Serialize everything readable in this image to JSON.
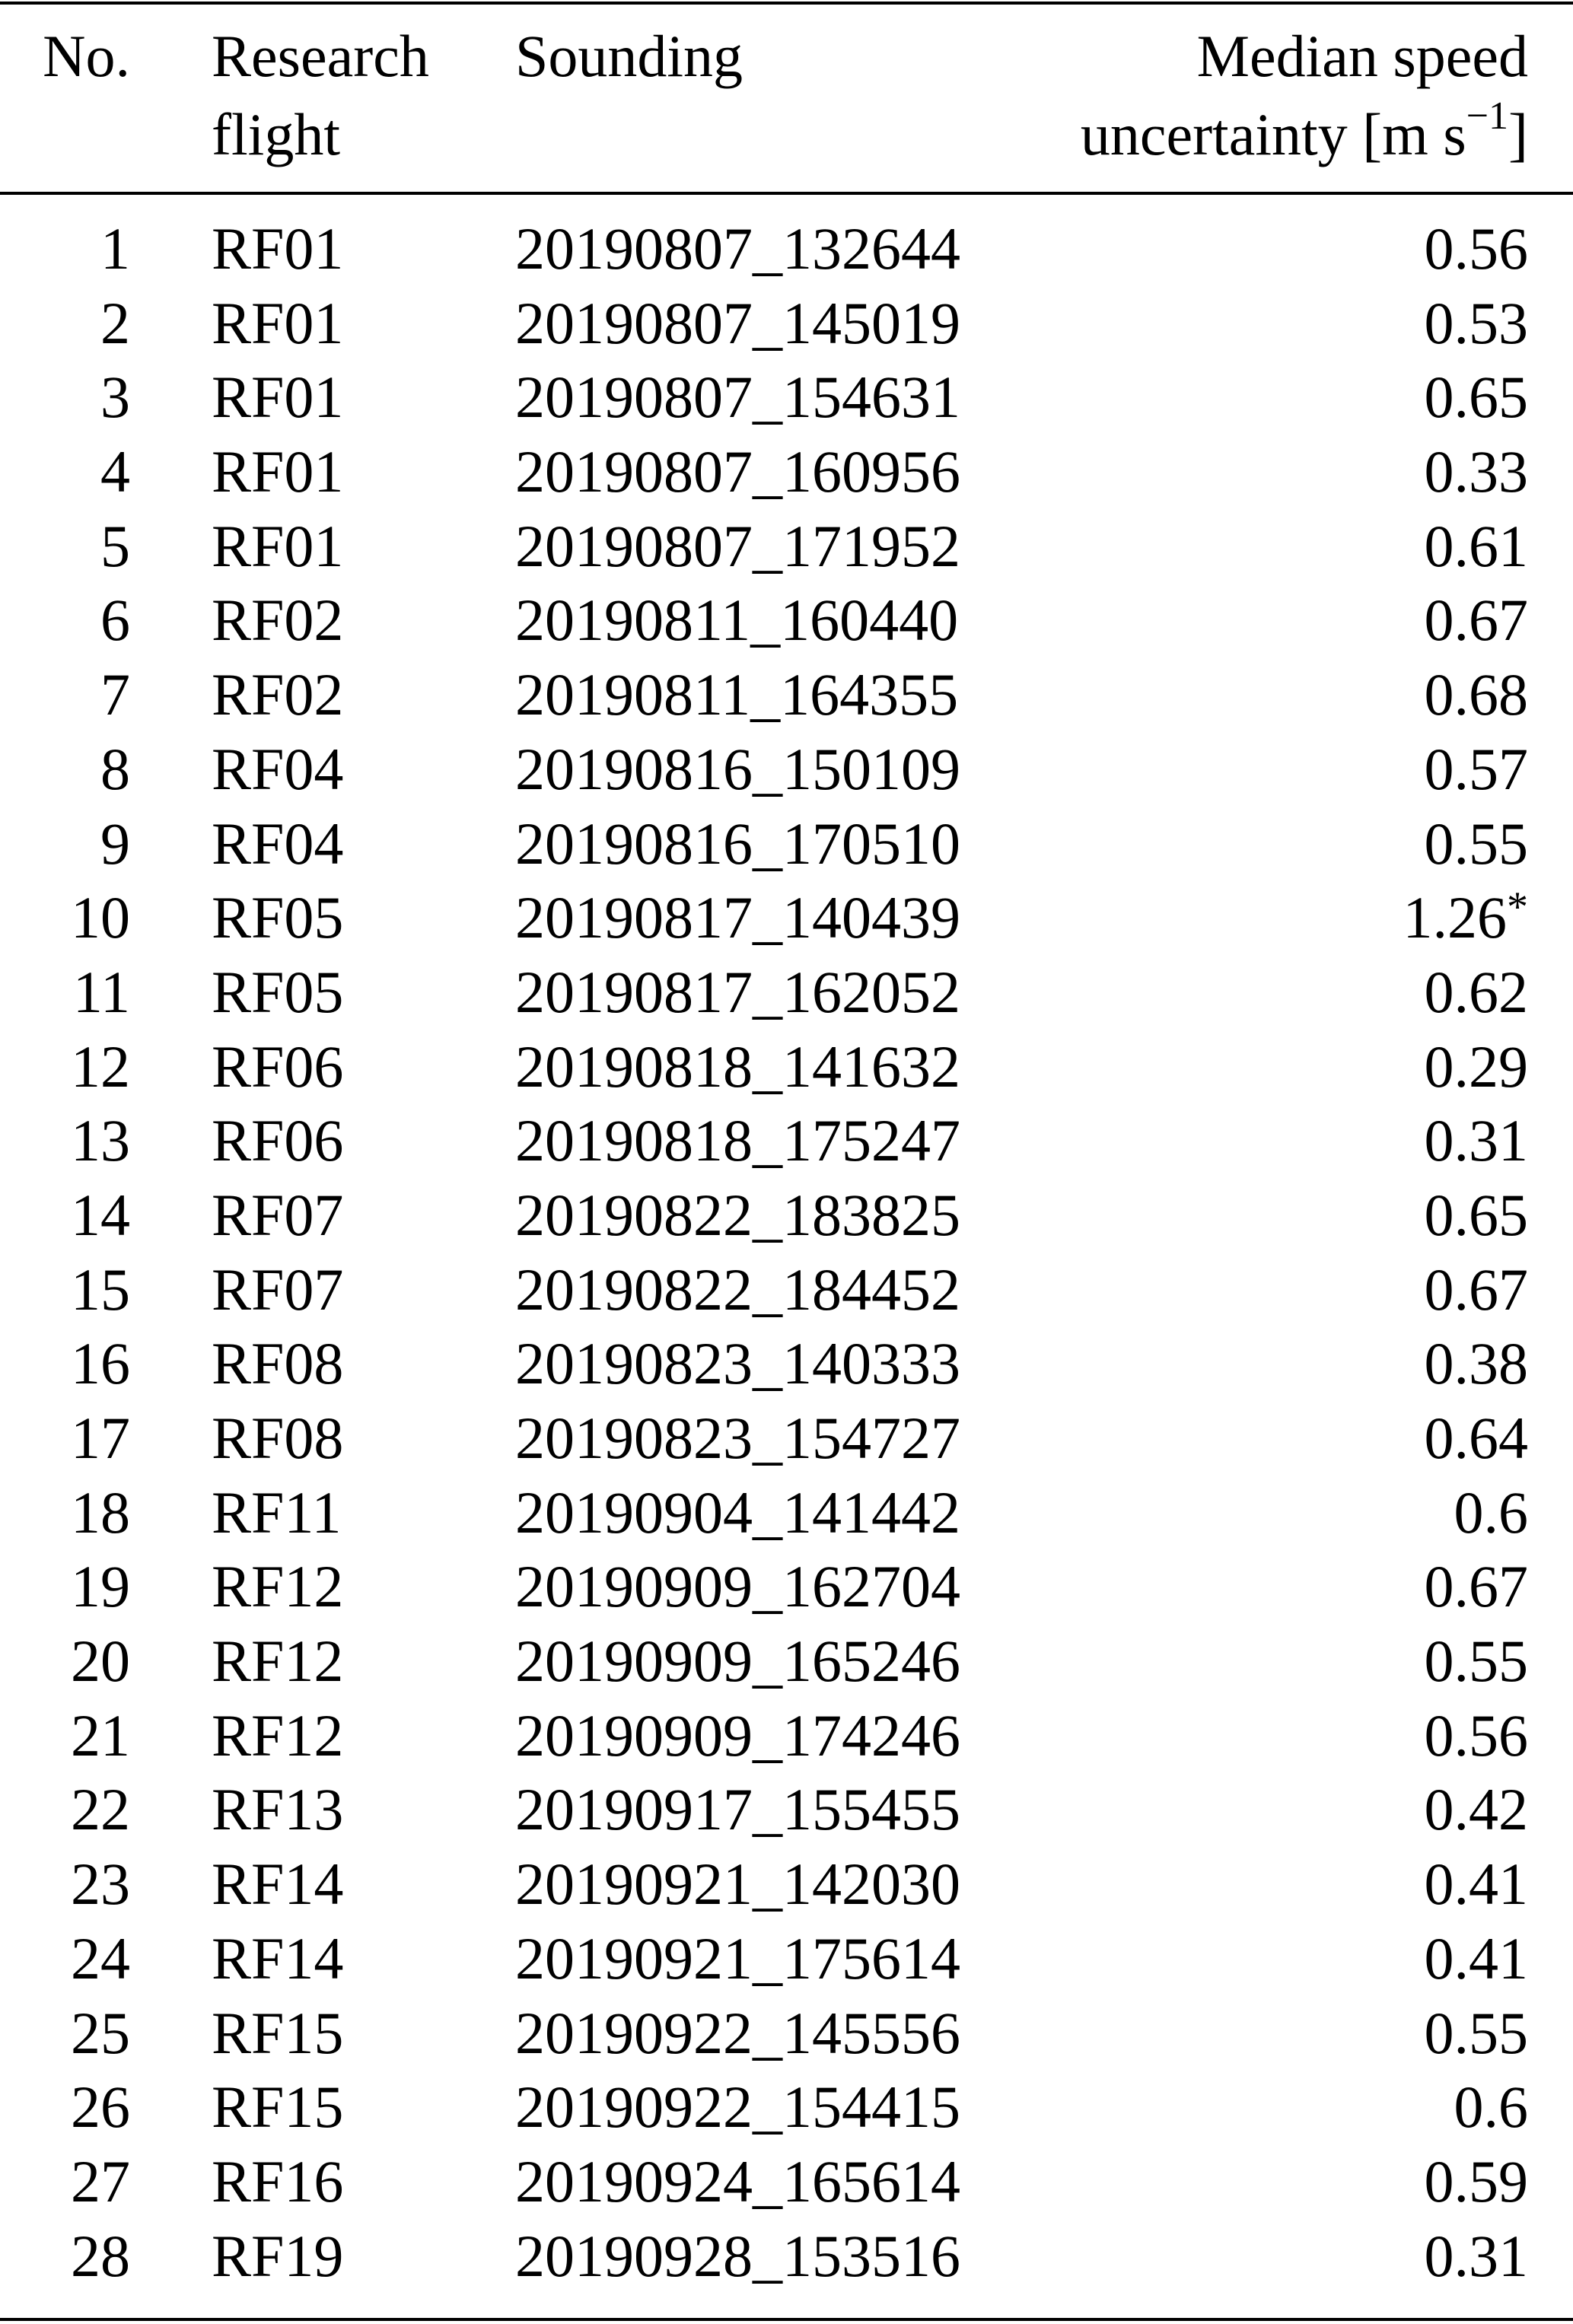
{
  "table": {
    "headers": {
      "no": "No.",
      "flight_line1": "Research",
      "flight_line2": "flight",
      "sounding": "Sounding",
      "speed_line1": "Median speed",
      "speed_line2": "uncertainty [m s",
      "speed_unit_exp": "−1",
      "speed_line2_close": "]"
    },
    "rows": [
      {
        "no": "1",
        "flight": "RF01",
        "sounding": "20190807_132644",
        "speed": "0.56"
      },
      {
        "no": "2",
        "flight": "RF01",
        "sounding": "20190807_145019",
        "speed": "0.53"
      },
      {
        "no": "3",
        "flight": "RF01",
        "sounding": "20190807_154631",
        "speed": "0.65"
      },
      {
        "no": "4",
        "flight": "RF01",
        "sounding": "20190807_160956",
        "speed": "0.33"
      },
      {
        "no": "5",
        "flight": "RF01",
        "sounding": "20190807_171952",
        "speed": "0.61"
      },
      {
        "no": "6",
        "flight": "RF02",
        "sounding": "20190811_160440",
        "speed": "0.67"
      },
      {
        "no": "7",
        "flight": "RF02",
        "sounding": "20190811_164355",
        "speed": "0.68"
      },
      {
        "no": "8",
        "flight": "RF04",
        "sounding": "20190816_150109",
        "speed": "0.57"
      },
      {
        "no": "9",
        "flight": "RF04",
        "sounding": "20190816_170510",
        "speed": "0.55"
      },
      {
        "no": "10",
        "flight": "RF05",
        "sounding": "20190817_140439",
        "speed": "1.26",
        "mark": "*"
      },
      {
        "no": "11",
        "flight": "RF05",
        "sounding": "20190817_162052",
        "speed": "0.62"
      },
      {
        "no": "12",
        "flight": "RF06",
        "sounding": "20190818_141632",
        "speed": "0.29"
      },
      {
        "no": "13",
        "flight": "RF06",
        "sounding": "20190818_175247",
        "speed": "0.31"
      },
      {
        "no": "14",
        "flight": "RF07",
        "sounding": "20190822_183825",
        "speed": "0.65"
      },
      {
        "no": "15",
        "flight": "RF07",
        "sounding": "20190822_184452",
        "speed": "0.67"
      },
      {
        "no": "16",
        "flight": "RF08",
        "sounding": "20190823_140333",
        "speed": "0.38"
      },
      {
        "no": "17",
        "flight": "RF08",
        "sounding": "20190823_154727",
        "speed": "0.64"
      },
      {
        "no": "18",
        "flight": "RF11",
        "sounding": "20190904_141442",
        "speed": "0.6"
      },
      {
        "no": "19",
        "flight": "RF12",
        "sounding": "20190909_162704",
        "speed": "0.67"
      },
      {
        "no": "20",
        "flight": "RF12",
        "sounding": "20190909_165246",
        "speed": "0.55"
      },
      {
        "no": "21",
        "flight": "RF12",
        "sounding": "20190909_174246",
        "speed": "0.56"
      },
      {
        "no": "22",
        "flight": "RF13",
        "sounding": "20190917_155455",
        "speed": "0.42"
      },
      {
        "no": "23",
        "flight": "RF14",
        "sounding": "20190921_142030",
        "speed": "0.41"
      },
      {
        "no": "24",
        "flight": "RF14",
        "sounding": "20190921_175614",
        "speed": "0.41"
      },
      {
        "no": "25",
        "flight": "RF15",
        "sounding": "20190922_145556",
        "speed": "0.55"
      },
      {
        "no": "26",
        "flight": "RF15",
        "sounding": "20190922_154415",
        "speed": "0.6"
      },
      {
        "no": "27",
        "flight": "RF16",
        "sounding": "20190924_165614",
        "speed": "0.59"
      },
      {
        "no": "28",
        "flight": "RF19",
        "sounding": "20190928_153516",
        "speed": "0.31"
      }
    ]
  }
}
